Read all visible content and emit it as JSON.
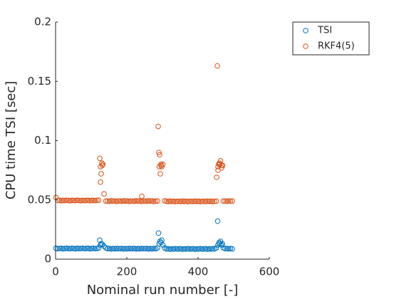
{
  "chart_data": {
    "type": "scatter",
    "x_label": "Nominal run number [-]",
    "y_label": "CPU time TSI [sec]",
    "xlim": [
      0,
      600
    ],
    "xticks": [
      0,
      200,
      400,
      600
    ],
    "ylim": [
      0,
      0.2
    ],
    "yticks": [
      0,
      0.05,
      0.1,
      0.15,
      0.2
    ],
    "grid": false,
    "legend_position": "northeast-outside",
    "series": [
      {
        "name": "TSI",
        "color": "#0072BD",
        "x": [
          1,
          6,
          11,
          16,
          21,
          26,
          31,
          36,
          41,
          46,
          51,
          56,
          61,
          66,
          71,
          76,
          81,
          86,
          91,
          96,
          101,
          106,
          111,
          116,
          121,
          126,
          131,
          136,
          141,
          146,
          151,
          156,
          161,
          166,
          171,
          176,
          181,
          186,
          191,
          196,
          201,
          206,
          211,
          216,
          221,
          226,
          231,
          236,
          241,
          246,
          251,
          256,
          261,
          266,
          271,
          276,
          281,
          286,
          291,
          296,
          301,
          306,
          311,
          316,
          321,
          326,
          331,
          336,
          341,
          346,
          351,
          356,
          361,
          366,
          371,
          376,
          381,
          386,
          391,
          396,
          401,
          406,
          411,
          416,
          421,
          426,
          431,
          436,
          441,
          446,
          451,
          456,
          461,
          466,
          471,
          476,
          481,
          486,
          491,
          496,
          124,
          128,
          289,
          293,
          298,
          455,
          459,
          463,
          468
        ],
        "values": [
          0.0092,
          0.0088,
          0.009,
          0.0091,
          0.0087,
          0.009,
          0.0092,
          0.0089,
          0.0088,
          0.0091,
          0.009,
          0.0087,
          0.0092,
          0.0089,
          0.009,
          0.0091,
          0.0088,
          0.009,
          0.0092,
          0.0087,
          0.009,
          0.0091,
          0.0089,
          0.009,
          0.0095,
          0.012,
          0.0125,
          0.011,
          0.0095,
          0.0088,
          0.009,
          0.0086,
          0.0089,
          0.0087,
          0.009,
          0.0088,
          0.0088,
          0.009,
          0.0086,
          0.0089,
          0.0087,
          0.009,
          0.0088,
          0.0088,
          0.009,
          0.0086,
          0.0089,
          0.0087,
          0.009,
          0.0088,
          0.0088,
          0.009,
          0.0086,
          0.0089,
          0.0087,
          0.009,
          0.0088,
          0.0095,
          0.013,
          0.014,
          0.012,
          0.0095,
          0.0086,
          0.0088,
          0.0084,
          0.0087,
          0.0085,
          0.0088,
          0.0086,
          0.0086,
          0.0088,
          0.0084,
          0.0087,
          0.0085,
          0.0088,
          0.0086,
          0.0086,
          0.0088,
          0.0084,
          0.0087,
          0.0085,
          0.0088,
          0.0086,
          0.0086,
          0.0088,
          0.0084,
          0.0087,
          0.0085,
          0.0088,
          0.0086,
          0.0095,
          0.012,
          0.013,
          0.012,
          0.0095,
          0.0088,
          0.009,
          0.0086,
          0.0089,
          0.0087,
          0.016,
          0.013,
          0.022,
          0.015,
          0.016,
          0.032,
          0.014,
          0.015,
          0.013
        ]
      },
      {
        "name": "RKF4(5)",
        "color": "#D95319",
        "x": [
          1,
          6,
          11,
          16,
          21,
          26,
          31,
          36,
          41,
          46,
          51,
          56,
          61,
          66,
          71,
          76,
          81,
          86,
          91,
          96,
          101,
          106,
          111,
          116,
          121,
          126,
          131,
          136,
          141,
          146,
          151,
          156,
          161,
          166,
          171,
          176,
          181,
          186,
          191,
          196,
          201,
          206,
          211,
          216,
          221,
          226,
          231,
          236,
          241,
          246,
          251,
          256,
          261,
          266,
          271,
          276,
          281,
          286,
          291,
          296,
          301,
          306,
          311,
          316,
          321,
          326,
          331,
          336,
          341,
          346,
          351,
          356,
          361,
          366,
          371,
          376,
          381,
          386,
          391,
          396,
          401,
          406,
          411,
          416,
          421,
          426,
          431,
          436,
          441,
          446,
          451,
          456,
          461,
          466,
          471,
          476,
          481,
          486,
          491,
          496,
          124,
          126,
          128,
          130,
          133,
          242,
          288,
          290,
          292,
          294,
          296,
          298,
          452,
          454,
          456,
          458,
          460,
          463,
          466,
          469
        ],
        "values": [
          0.052,
          0.0495,
          0.0497,
          0.0493,
          0.0496,
          0.0494,
          0.0497,
          0.0495,
          0.0493,
          0.0496,
          0.0495,
          0.0494,
          0.0497,
          0.0495,
          0.0493,
          0.0496,
          0.0494,
          0.0495,
          0.0497,
          0.0493,
          0.0496,
          0.0495,
          0.0494,
          0.0496,
          0.0497,
          0.078,
          0.079,
          0.055,
          0.049,
          0.049,
          0.0488,
          0.0492,
          0.0489,
          0.0491,
          0.0487,
          0.049,
          0.049,
          0.0488,
          0.0492,
          0.0489,
          0.0491,
          0.0487,
          0.049,
          0.049,
          0.0488,
          0.0492,
          0.0489,
          0.0491,
          0.0487,
          0.049,
          0.049,
          0.0488,
          0.0492,
          0.0489,
          0.0491,
          0.0487,
          0.049,
          0.049,
          0.078,
          0.079,
          0.08,
          0.0492,
          0.0488,
          0.0486,
          0.049,
          0.0487,
          0.0489,
          0.0485,
          0.0488,
          0.0488,
          0.0486,
          0.049,
          0.0487,
          0.0489,
          0.0485,
          0.0488,
          0.0488,
          0.0486,
          0.049,
          0.0487,
          0.0489,
          0.0485,
          0.0488,
          0.0488,
          0.0486,
          0.049,
          0.0487,
          0.0489,
          0.0485,
          0.0488,
          0.0489,
          0.078,
          0.08,
          0.079,
          0.049,
          0.049,
          0.0488,
          0.0491,
          0.0489,
          0.049,
          0.085,
          0.065,
          0.072,
          0.081,
          0.08,
          0.053,
          0.112,
          0.09,
          0.088,
          0.072,
          0.08,
          0.078,
          0.069,
          0.163,
          0.075,
          0.08,
          0.081,
          0.083,
          0.077,
          0.079
        ]
      }
    ]
  }
}
